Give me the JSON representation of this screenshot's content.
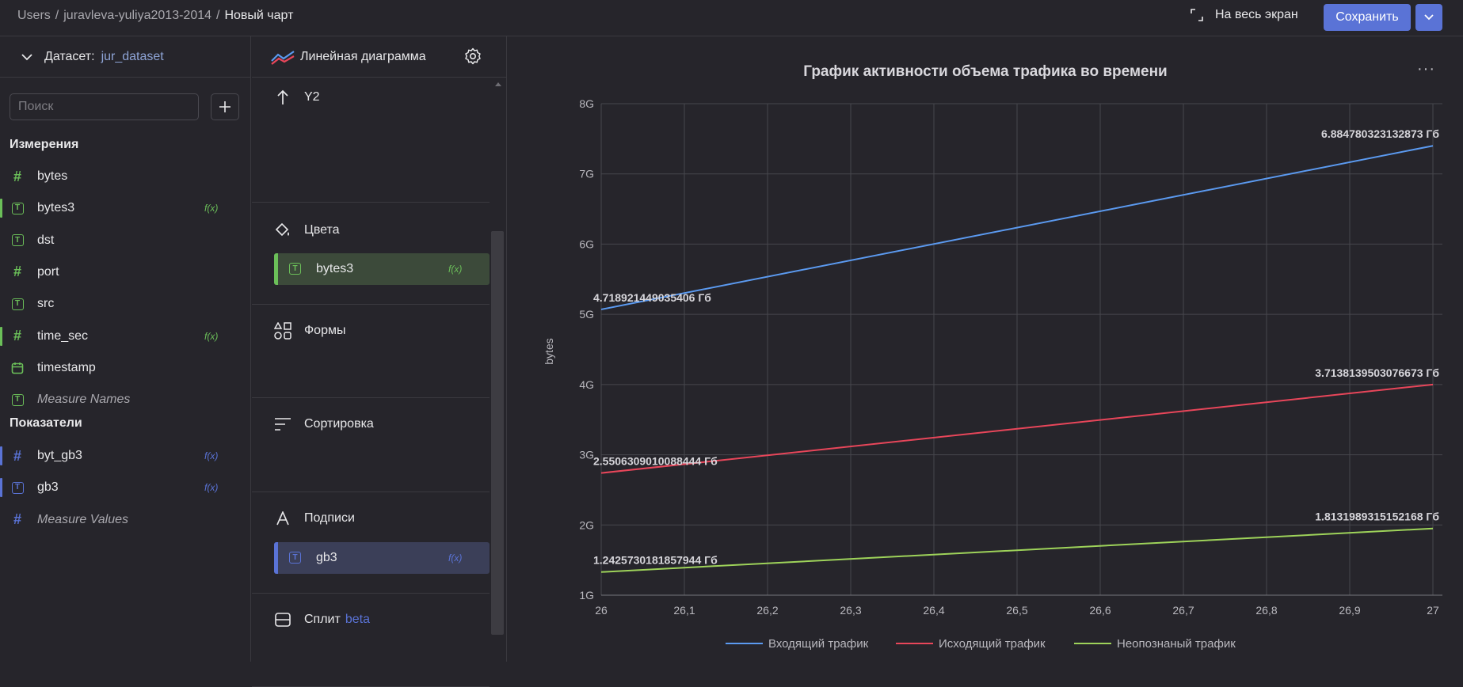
{
  "breadcrumb": {
    "root": "Users",
    "folder": "juravleva-yuliya2013-2014",
    "current": "Новый чарт",
    "sep": "/"
  },
  "header": {
    "fullscreen_label": "На весь экран",
    "save_label": "Сохранить"
  },
  "dataset": {
    "label": "Датасет:",
    "name": "jur_dataset",
    "search_placeholder": "Поиск"
  },
  "dimensions": {
    "title": "Измерения",
    "items": [
      {
        "name": "bytes",
        "type": "number",
        "fx": false
      },
      {
        "name": "bytes3",
        "type": "text",
        "fx": true
      },
      {
        "name": "dst",
        "type": "text",
        "fx": false
      },
      {
        "name": "port",
        "type": "number",
        "fx": false
      },
      {
        "name": "src",
        "type": "text",
        "fx": false
      },
      {
        "name": "time_sec",
        "type": "number",
        "fx": true
      },
      {
        "name": "timestamp",
        "type": "date",
        "fx": false
      },
      {
        "name": "Measure Names",
        "type": "text",
        "fx": false,
        "italic": true
      }
    ]
  },
  "measures": {
    "title": "Показатели",
    "items": [
      {
        "name": "byt_gb3",
        "type": "number",
        "fx": true
      },
      {
        "name": "gb3",
        "type": "text",
        "fx": true
      },
      {
        "name": "Measure Values",
        "type": "number",
        "fx": false,
        "italic": true
      }
    ]
  },
  "config": {
    "chart_type": "Линейная диаграмма",
    "y2_label": "Y2",
    "colors_label": "Цвета",
    "colors_field": "bytes3",
    "shapes_label": "Формы",
    "sort_label": "Сортировка",
    "labels_label": "Подписи",
    "labels_field": "gb3",
    "split_label": "Сплит",
    "beta_label": "beta",
    "fx_label": "f(x)"
  },
  "colors": {
    "accent": "#5a73d6",
    "dimension": "#6bbf59",
    "measure": "#5a73d6",
    "series_in": "#5b9af0",
    "series_out": "#e8465a",
    "series_unknown": "#9ed35a"
  },
  "chart_data": {
    "type": "line",
    "title": "График активности объема трафика во времени",
    "ylabel": "bytes",
    "xlabel": "",
    "x": [
      26,
      27
    ],
    "x_ticks": [
      "26",
      "26,1",
      "26,2",
      "26,3",
      "26,4",
      "26,5",
      "26,6",
      "26,7",
      "26,8",
      "26,9",
      "27"
    ],
    "y_ticks": [
      "1G",
      "2G",
      "3G",
      "4G",
      "5G",
      "6G",
      "7G",
      "8G"
    ],
    "ylim": [
      1,
      8
    ],
    "xlim": [
      26,
      27
    ],
    "grid": true,
    "legend_position": "bottom",
    "series": [
      {
        "name": "Входящий трафик",
        "color": "#5b9af0",
        "values": [
          5.07,
          7.4
        ],
        "labels": [
          "4.718921449035406 Гб",
          "6.884780323132873 Гб"
        ]
      },
      {
        "name": "Исходящий трафик",
        "color": "#e8465a",
        "values": [
          2.74,
          4.0
        ],
        "labels": [
          "2.5506309010088444 Гб",
          "3.7138139503076673 Гб"
        ]
      },
      {
        "name": "Неопознаный трафик",
        "color": "#9ed35a",
        "values": [
          1.33,
          1.95
        ],
        "labels": [
          "1.2425730181857944 Гб",
          "1.8131989315152168 Гб"
        ]
      }
    ]
  }
}
